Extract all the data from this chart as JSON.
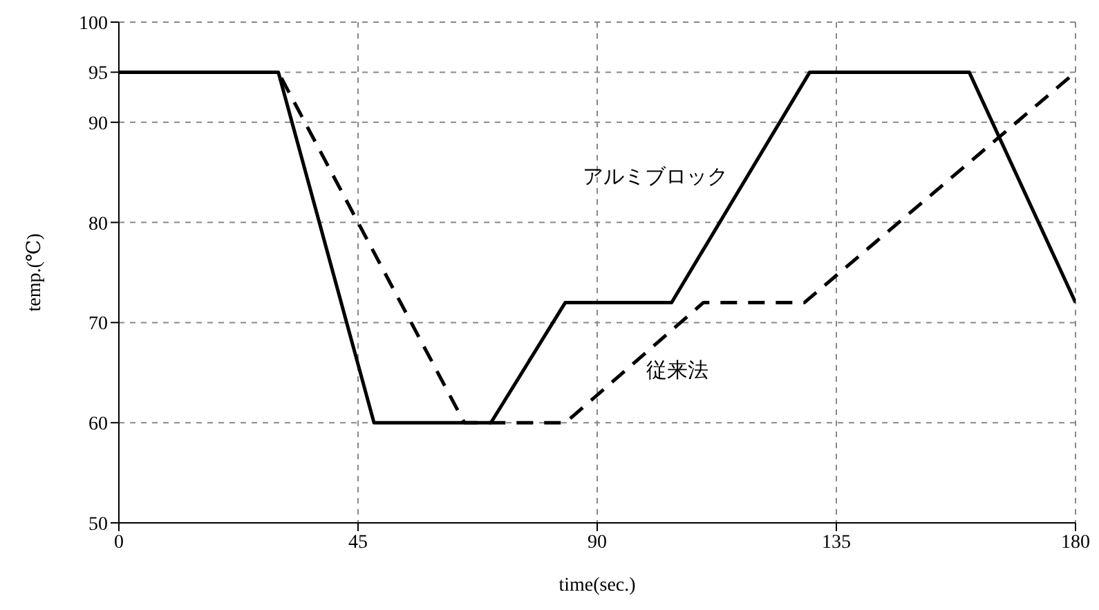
{
  "chart_data": {
    "type": "line",
    "xlabel": "time(sec.)",
    "ylabel": "temp.(℃)",
    "xlim": [
      0,
      180
    ],
    "xticks": [
      0,
      45,
      90,
      135,
      180
    ],
    "ylim": [
      50,
      100
    ],
    "yticks": [
      50,
      60,
      70,
      80,
      90,
      95,
      100
    ],
    "grid": true,
    "legend": false,
    "marker": "none",
    "series": [
      {
        "name": "アルミブロック",
        "color": "#000000",
        "line_style": "solid",
        "x": [
          0,
          30,
          48,
          70,
          84,
          104,
          130,
          160,
          180
        ],
        "values": [
          95,
          95,
          60,
          60,
          72,
          72,
          95,
          95,
          72
        ]
      },
      {
        "name": "従来法",
        "color": "#000000",
        "line_style": "dashed",
        "x": [
          0,
          30,
          65,
          84,
          110,
          129,
          180
        ],
        "values": [
          95,
          95,
          60,
          60,
          72,
          72,
          95
        ]
      }
    ]
  }
}
